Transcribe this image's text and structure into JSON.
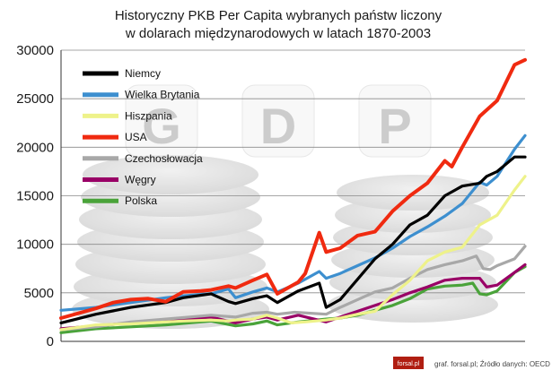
{
  "chart_data": {
    "type": "line",
    "title": "Historyczny PKB Per Capita wybranych państw liczony",
    "subtitle": "w dolarach międzynarodowych w latach 1870-2003",
    "ylim": [
      0,
      30000
    ],
    "y_ticks": [
      0,
      5000,
      10000,
      15000,
      20000,
      25000,
      30000
    ],
    "x_range": [
      1870,
      2003
    ],
    "grid": "horizontal",
    "legend_position": "top-left",
    "background_watermark_letters": [
      "G",
      "D",
      "P"
    ],
    "series": [
      {
        "name": "Niemcy",
        "color": "#000000",
        "x": [
          1870,
          1880,
          1890,
          1900,
          1905,
          1913,
          1918,
          1920,
          1925,
          1929,
          1932,
          1938,
          1944,
          1946,
          1950,
          1955,
          1960,
          1965,
          1970,
          1975,
          1980,
          1985,
          1990,
          1992,
          1995,
          2000,
          2003
        ],
        "y": [
          1900,
          2800,
          3500,
          4000,
          4500,
          4900,
          4100,
          3900,
          4400,
          4700,
          4000,
          5200,
          6000,
          3500,
          4300,
          6400,
          8500,
          10000,
          12000,
          13000,
          15000,
          16000,
          16300,
          17000,
          17500,
          19000,
          19000
        ]
      },
      {
        "name": "Wielka Brytania",
        "color": "#3d8fcf",
        "x": [
          1870,
          1880,
          1890,
          1900,
          1905,
          1913,
          1918,
          1920,
          1925,
          1929,
          1932,
          1938,
          1944,
          1946,
          1950,
          1955,
          1960,
          1965,
          1970,
          1975,
          1980,
          1985,
          1990,
          1992,
          1995,
          2000,
          2003
        ],
        "y": [
          3200,
          3500,
          4000,
          4500,
          4700,
          4900,
          5400,
          4500,
          5100,
          5500,
          5100,
          6000,
          7200,
          6500,
          7000,
          7800,
          8600,
          9600,
          10800,
          11800,
          12900,
          14200,
          16400,
          16100,
          17000,
          19800,
          21200
        ]
      },
      {
        "name": "Hiszpania",
        "color": "#eef28a",
        "x": [
          1870,
          1880,
          1890,
          1900,
          1905,
          1913,
          1918,
          1920,
          1925,
          1929,
          1932,
          1936,
          1940,
          1946,
          1950,
          1955,
          1960,
          1965,
          1970,
          1975,
          1980,
          1985,
          1990,
          1995,
          2000,
          2003
        ],
        "y": [
          1200,
          1700,
          1800,
          2000,
          2100,
          2200,
          2100,
          2200,
          2300,
          2700,
          2400,
          1900,
          2000,
          2200,
          2400,
          2800,
          3100,
          4800,
          6300,
          8300,
          9200,
          9700,
          12000,
          13000,
          15600,
          17000
        ]
      },
      {
        "name": "USA",
        "color": "#f02a10",
        "x": [
          1870,
          1880,
          1885,
          1890,
          1895,
          1900,
          1905,
          1910,
          1913,
          1918,
          1920,
          1925,
          1929,
          1932,
          1938,
          1940,
          1944,
          1946,
          1950,
          1955,
          1960,
          1965,
          1970,
          1975,
          1980,
          1982,
          1985,
          1990,
          1995,
          2000,
          2003
        ],
        "y": [
          2400,
          3400,
          4000,
          4300,
          4400,
          4100,
          5100,
          5200,
          5300,
          5700,
          5500,
          6300,
          6900,
          4900,
          6100,
          7000,
          11200,
          9200,
          9600,
          10900,
          11300,
          13400,
          15000,
          16300,
          18600,
          18000,
          20000,
          23200,
          24800,
          28500,
          29000
        ]
      },
      {
        "name": "Czechosłowacja",
        "color": "#a8a8a8",
        "x": [
          1870,
          1880,
          1890,
          1900,
          1913,
          1920,
          1925,
          1929,
          1932,
          1937,
          1946,
          1950,
          1955,
          1960,
          1965,
          1970,
          1975,
          1980,
          1985,
          1989,
          1991,
          1993,
          1995,
          2000,
          2003
        ],
        "y": [
          1200,
          1500,
          2000,
          2300,
          2700,
          2500,
          2900,
          3000,
          2800,
          3000,
          2800,
          3500,
          4300,
          5100,
          5500,
          6500,
          7400,
          7900,
          8300,
          8800,
          7500,
          7400,
          7800,
          8500,
          9800
        ]
      },
      {
        "name": "Węgry",
        "color": "#990066",
        "x": [
          1870,
          1880,
          1890,
          1900,
          1913,
          1920,
          1925,
          1929,
          1932,
          1938,
          1946,
          1950,
          1955,
          1960,
          1965,
          1970,
          1975,
          1980,
          1985,
          1990,
          1992,
          1995,
          2000,
          2003
        ],
        "y": [
          1300,
          1600,
          1900,
          2100,
          2500,
          1900,
          2300,
          2500,
          2200,
          2700,
          2000,
          2500,
          3100,
          3700,
          4300,
          5000,
          5600,
          6300,
          6500,
          6500,
          5600,
          5800,
          7100,
          7900
        ]
      },
      {
        "name": "Polska",
        "color": "#4aa33a",
        "x": [
          1870,
          1880,
          1890,
          1900,
          1913,
          1920,
          1925,
          1929,
          1932,
          1938,
          1946,
          1950,
          1955,
          1960,
          1965,
          1970,
          1975,
          1980,
          1985,
          1988,
          1990,
          1992,
          1995,
          2000,
          2003
        ],
        "y": [
          900,
          1300,
          1500,
          1700,
          2100,
          1600,
          1800,
          2100,
          1700,
          2000,
          2300,
          2400,
          2700,
          3200,
          3700,
          4400,
          5400,
          5700,
          5800,
          6000,
          4900,
          4800,
          5200,
          7100,
          7700
        ]
      }
    ]
  },
  "footer": {
    "logo": "forsal.pl",
    "source": "graf. forsal.pl; Źródło danych: OECD"
  }
}
